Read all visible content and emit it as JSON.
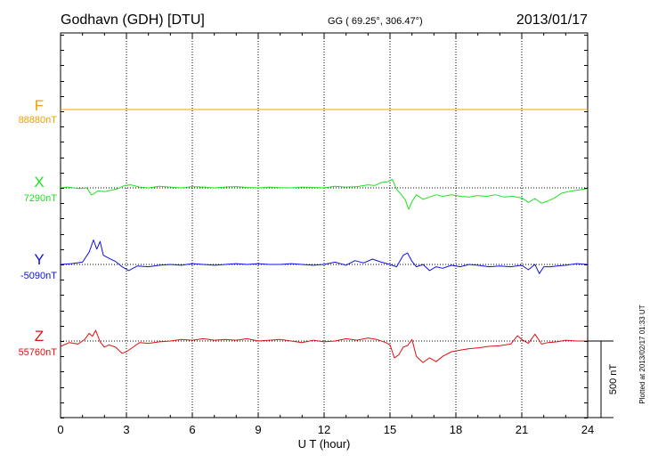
{
  "header": {
    "station": "Godhavn (GDH)  [DTU]",
    "coords": "GG ( 69.25°, 306.47°)",
    "date": "2013/01/17"
  },
  "footer": {
    "plotted_note": "Plotted at 2013/02/17 01:33 UT"
  },
  "chart_data": {
    "type": "line",
    "title": "Godhavn (GDH)  [DTU]",
    "xlabel": "U T (hour)",
    "ylabel": "",
    "xlim": [
      0,
      24
    ],
    "x_ticks": [
      "0",
      "3",
      "6",
      "9",
      "12",
      "15",
      "18",
      "21",
      "24"
    ],
    "grid": "dotted vertical lines every 3 hours",
    "scale_bar": {
      "label": "500 nT",
      "value_nT": 500
    },
    "series": [
      {
        "name": "F",
        "baseline_label": "88880nT",
        "baseline_nT": 88880,
        "color": "#f0a000",
        "x": [
          0,
          24
        ],
        "values": [
          0,
          0
        ]
      },
      {
        "name": "X",
        "baseline_label": "7290nT",
        "baseline_nT": 7290,
        "color": "#22e022",
        "x": [
          0,
          0.3,
          0.6,
          0.9,
          1.2,
          1.4,
          1.5,
          1.7,
          2.0,
          2.3,
          2.6,
          2.9,
          3.2,
          3.6,
          4.0,
          4.5,
          5.0,
          5.5,
          6.0,
          6.5,
          7.0,
          7.5,
          8.0,
          8.5,
          9.0,
          9.5,
          10.0,
          10.5,
          11.0,
          11.5,
          12.0,
          12.5,
          13.0,
          13.5,
          14.0,
          14.3,
          14.6,
          14.9,
          15.1,
          15.3,
          15.5,
          15.7,
          15.85,
          16.0,
          16.2,
          16.5,
          16.8,
          17.1,
          17.4,
          17.8,
          18.2,
          18.6,
          19.0,
          19.4,
          19.8,
          20.2,
          20.6,
          21.0,
          21.3,
          21.6,
          21.9,
          22.2,
          22.5,
          22.8,
          23.1,
          23.5,
          24.0
        ],
        "values": [
          0,
          5,
          0,
          -5,
          0,
          -45,
          -40,
          -20,
          -25,
          -15,
          -5,
          15,
          20,
          5,
          0,
          10,
          5,
          0,
          8,
          5,
          0,
          5,
          8,
          3,
          0,
          5,
          2,
          0,
          5,
          3,
          0,
          10,
          5,
          8,
          20,
          15,
          35,
          40,
          55,
          -10,
          -40,
          -80,
          -140,
          -90,
          -45,
          -75,
          -60,
          -45,
          -55,
          -45,
          -55,
          -60,
          -50,
          -55,
          -45,
          -60,
          -55,
          -65,
          -95,
          -70,
          -100,
          -85,
          -65,
          -35,
          -25,
          -15,
          -5
        ]
      },
      {
        "name": "Y",
        "baseline_label": "-5090nT",
        "baseline_nT": -5090,
        "color": "#1010e0",
        "x": [
          0,
          0.5,
          1.0,
          1.3,
          1.5,
          1.65,
          1.8,
          1.95,
          2.2,
          2.5,
          2.8,
          3.1,
          3.5,
          4.0,
          4.5,
          5.0,
          5.5,
          6.0,
          6.5,
          7.0,
          7.5,
          8.0,
          8.5,
          9.0,
          9.5,
          10.0,
          10.5,
          11.0,
          11.5,
          12.0,
          12.5,
          13.0,
          13.4,
          13.8,
          14.2,
          14.6,
          15.0,
          15.3,
          15.6,
          15.8,
          16.0,
          16.2,
          16.5,
          16.8,
          17.1,
          17.4,
          17.8,
          18.2,
          18.6,
          19.0,
          19.5,
          20.0,
          20.5,
          21.0,
          21.3,
          21.6,
          21.8,
          22.0,
          22.3,
          22.6,
          23.0,
          23.5,
          24.0
        ],
        "values": [
          0,
          5,
          15,
          80,
          160,
          100,
          150,
          60,
          40,
          20,
          -15,
          -40,
          -10,
          -15,
          -5,
          0,
          -5,
          5,
          0,
          -5,
          0,
          5,
          0,
          5,
          0,
          0,
          5,
          0,
          -5,
          0,
          15,
          -5,
          25,
          10,
          35,
          15,
          0,
          -15,
          60,
          75,
          20,
          -15,
          0,
          -40,
          -15,
          -25,
          -5,
          -15,
          0,
          -5,
          -15,
          -10,
          -15,
          -5,
          -35,
          0,
          -60,
          -15,
          -15,
          -10,
          -5,
          5,
          0
        ]
      },
      {
        "name": "Z",
        "baseline_label": "55760nT",
        "baseline_nT": 55760,
        "color": "#e01010",
        "x": [
          0,
          0.4,
          0.8,
          1.1,
          1.3,
          1.45,
          1.6,
          1.8,
          2.0,
          2.2,
          2.5,
          2.8,
          3.0,
          3.3,
          3.6,
          4.0,
          4.5,
          5.0,
          5.5,
          6.0,
          6.5,
          7.0,
          7.5,
          8.0,
          8.5,
          9.0,
          9.5,
          10.0,
          10.5,
          11.0,
          11.5,
          12.0,
          12.5,
          13.0,
          13.5,
          14.0,
          14.4,
          14.8,
          15.0,
          15.2,
          15.4,
          15.6,
          15.8,
          16.0,
          16.2,
          16.5,
          16.8,
          17.1,
          17.4,
          17.8,
          18.2,
          18.6,
          19.0,
          19.5,
          20.0,
          20.5,
          20.8,
          21.0,
          21.3,
          21.6,
          21.9,
          22.2,
          22.6,
          23.0,
          23.5,
          24.0
        ],
        "values": [
          -35,
          -10,
          -20,
          10,
          50,
          30,
          70,
          -5,
          -40,
          -25,
          -40,
          -80,
          -70,
          -40,
          -10,
          -15,
          -5,
          0,
          10,
          5,
          15,
          5,
          10,
          5,
          15,
          0,
          5,
          10,
          0,
          -10,
          5,
          -5,
          0,
          15,
          5,
          20,
          10,
          -10,
          -25,
          -110,
          -90,
          -40,
          -30,
          10,
          -100,
          -140,
          -110,
          -135,
          -100,
          -70,
          -60,
          -50,
          -45,
          -35,
          -30,
          -20,
          35,
          10,
          -15,
          45,
          -20,
          -10,
          -5,
          5,
          0,
          0
        ]
      }
    ]
  }
}
